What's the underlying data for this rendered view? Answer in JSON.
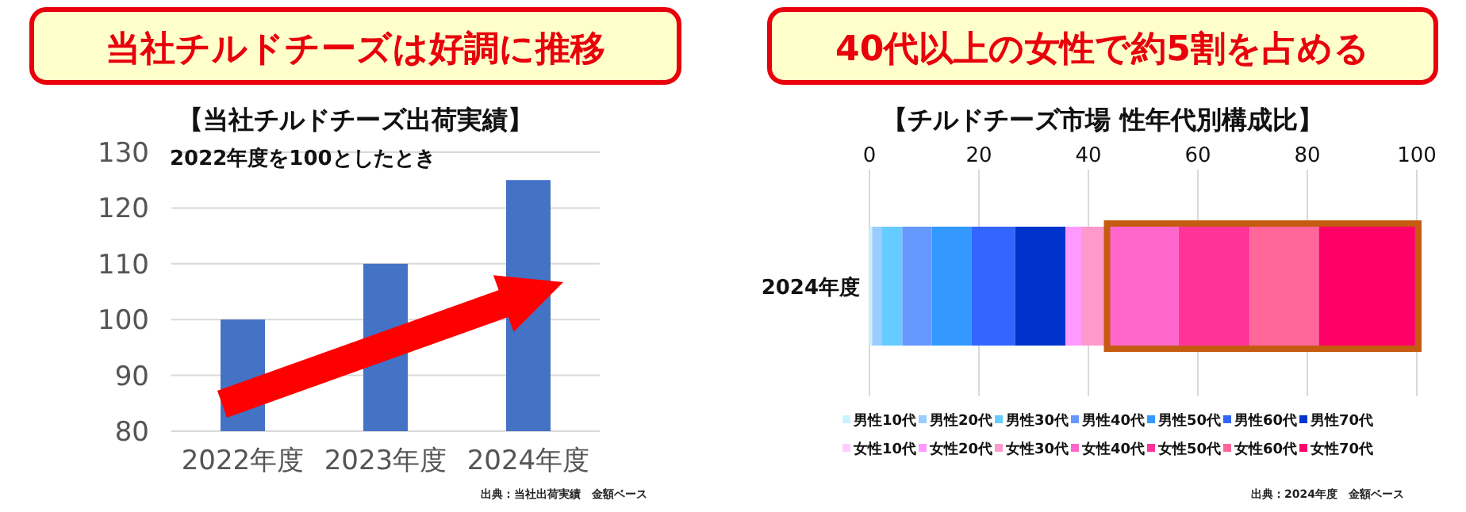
{
  "chart_data": [
    {
      "type": "bar",
      "title": "当社チルドチーズは好調に推移",
      "subtitle": "【当社チルドチーズ出荷実績】",
      "categories": [
        "2022年度",
        "2023年度",
        "2024年度"
      ],
      "series": [
        {
          "color": "#4472c4",
          "values": [
            100,
            110,
            125
          ]
        }
      ],
      "ylim": [
        80,
        130
      ],
      "yticks": [
        80,
        90,
        100,
        110,
        120,
        130
      ],
      "grid": "y",
      "legend": false,
      "annotations": [
        "2022年度を100としたとき",
        "出典：当社出荷実績　金額ベース"
      ]
    },
    {
      "type": "bar",
      "orientation": "horizontal",
      "stacked": true,
      "title": "40代以上の女性で約5割を占める",
      "subtitle": "【チルドチーズ市場 性年代別構成比】",
      "categories": [
        "2024年度"
      ],
      "series": [
        {
          "name": "男性10代",
          "color": "#ccf2ff",
          "values": [
            0.5
          ]
        },
        {
          "name": "男性20代",
          "color": "#99ccff",
          "values": [
            1.7
          ]
        },
        {
          "name": "男性30代",
          "color": "#66ccff",
          "values": [
            3.8
          ]
        },
        {
          "name": "男性40代",
          "color": "#6699ff",
          "values": [
            5.4
          ]
        },
        {
          "name": "男性50代",
          "color": "#3399ff",
          "values": [
            7.2
          ]
        },
        {
          "name": "男性60代",
          "color": "#3366ff",
          "values": [
            8.0
          ]
        },
        {
          "name": "男性70代",
          "color": "#0033cc",
          "values": [
            9.2
          ]
        },
        {
          "name": "女性10代",
          "color": "#ffccff",
          "values": [
            null
          ]
        },
        {
          "name": "女性20代",
          "color": "#ff99ff",
          "values": [
            2.9
          ]
        },
        {
          "name": "女性30代",
          "color": "#ff99cc",
          "values": [
            5.0
          ]
        },
        {
          "name": "女性40代",
          "color": "#ff66cc",
          "values": [
            12.8
          ]
        },
        {
          "name": "女性50代",
          "color": "#ff3399",
          "values": [
            13.0
          ]
        },
        {
          "name": "女性60代",
          "color": "#ff6699",
          "values": [
            12.6
          ]
        },
        {
          "name": "女性70代",
          "color": "#ff0066",
          "values": [
            17.6
          ]
        }
      ],
      "xlim": [
        0,
        100
      ],
      "xticks": [
        0,
        20,
        40,
        60,
        80,
        100
      ],
      "grid": "x",
      "legend": "bottom",
      "annotations": [
        "出典：2024年度　金額ベース"
      ]
    }
  ]
}
